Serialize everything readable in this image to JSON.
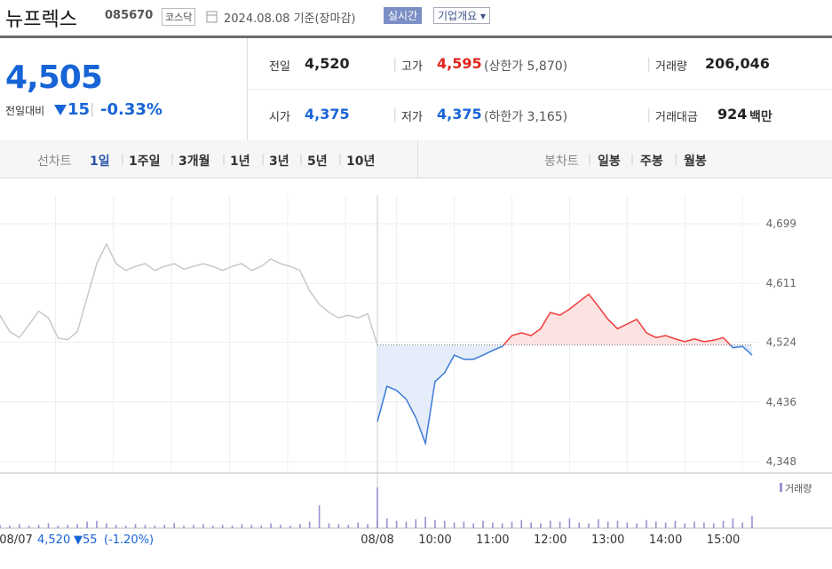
{
  "header": {
    "title": "뉴프렉스",
    "code": "085670",
    "market": "코스닥",
    "date": "2024.08.08 기준(장마감)",
    "realtime": "실시간",
    "overview": "기업개요"
  },
  "quote": {
    "price": "4,505",
    "change_label": "전일대비",
    "change": "15",
    "rate": "-0.33%",
    "rows": [
      [
        {
          "label": "전일",
          "value": "4,520"
        },
        {
          "label": "고가",
          "value": "4,595",
          "note": "(상한가 5,870)"
        },
        {
          "label": "거래량",
          "value": "206,046"
        }
      ],
      [
        {
          "label": "시가",
          "value": "4,375"
        },
        {
          "label": "저가",
          "value": "4,375",
          "note": "(하한가 3,165)"
        },
        {
          "label": "거래대금",
          "value": "924",
          "unit": "백만"
        }
      ]
    ]
  },
  "tabs": {
    "line_label": "선차트",
    "line": [
      "1일",
      "1주일",
      "3개월",
      "1년",
      "3년",
      "5년",
      "10년"
    ],
    "candle_label": "봉차트",
    "candle": [
      "일봉",
      "주봉",
      "월봉"
    ]
  },
  "footer": {
    "close": "4,520",
    "change": "▼55",
    "rate": "(-1.20%)"
  },
  "chart_data": {
    "type": "line",
    "categories": [
      "08/07",
      null,
      null,
      null,
      null,
      null,
      null,
      null,
      null,
      null,
      null,
      null,
      null,
      null,
      null,
      null,
      null,
      null,
      null,
      null,
      null,
      null,
      null,
      null,
      null,
      null,
      null,
      null,
      null,
      null,
      null,
      null,
      null,
      null,
      null,
      null,
      null,
      null,
      null,
      null,
      "08/08",
      null,
      null,
      null,
      null,
      null,
      "10:00",
      null,
      null,
      null,
      null,
      null,
      "11:00",
      null,
      null,
      null,
      null,
      null,
      "12:00",
      null,
      null,
      null,
      null,
      null,
      "13:00",
      null,
      null,
      null,
      null,
      null,
      "14:00",
      null,
      null,
      null,
      null,
      null,
      "15:00",
      null,
      null,
      null
    ],
    "series": [
      {
        "color": "#c8c8c8",
        "values": [
          4564,
          4540,
          4531,
          4550,
          4570,
          4560,
          4530,
          4528,
          4540,
          4590,
          4640,
          4669,
          4640,
          4630,
          4636,
          4640,
          4630,
          4636,
          4640,
          4632,
          4636,
          4640,
          4636,
          4630,
          4636,
          4640,
          4630,
          4636,
          4647,
          4640,
          4636,
          4630,
          4600,
          4580,
          4568,
          4560,
          4564,
          4560,
          4566,
          4520,
          null,
          null,
          null,
          null,
          null,
          null,
          null,
          null,
          null,
          null,
          null,
          null,
          null,
          null,
          null,
          null,
          null,
          null,
          null,
          null,
          null,
          null,
          null,
          null,
          null,
          null,
          null,
          null,
          null,
          null,
          null,
          null,
          null,
          null,
          null,
          null,
          null,
          null,
          null,
          null
        ]
      },
      {
        "color": "#3d7bd6",
        "up_color": "#ef3b3b",
        "fill": "#e4edf9",
        "up_fill": "#fde2e2",
        "values": [
          null,
          null,
          null,
          null,
          null,
          null,
          null,
          null,
          null,
          null,
          null,
          null,
          null,
          null,
          null,
          null,
          null,
          null,
          null,
          null,
          null,
          null,
          null,
          null,
          null,
          null,
          null,
          null,
          null,
          null,
          null,
          null,
          null,
          null,
          null,
          null,
          null,
          null,
          null,
          null,
          4407,
          4459,
          4453,
          4440,
          4413,
          4375,
          4466,
          4479,
          4505,
          4499,
          4499,
          4505,
          4512,
          4518,
          4534,
          4538,
          4534,
          4544,
          4568,
          4564,
          4573,
          4584,
          4595,
          4577,
          4558,
          4544,
          4551,
          4558,
          4538,
          4531,
          4534,
          4529,
          4525,
          4529,
          4525,
          4527,
          4531,
          4516,
          4518,
          4505
        ]
      },
      {
        "name": "거래량",
        "color": "#9b8fcf",
        "axis": "y2",
        "values": [
          4,
          3,
          5,
          3,
          4,
          6,
          3,
          4,
          5,
          8,
          9,
          6,
          4,
          3,
          5,
          4,
          3,
          4,
          6,
          3,
          4,
          5,
          3,
          4,
          3,
          5,
          4,
          3,
          6,
          4,
          3,
          5,
          8,
          28,
          6,
          5,
          4,
          7,
          5,
          10,
          50,
          12,
          9,
          8,
          11,
          14,
          10,
          9,
          7,
          8,
          6,
          9,
          7,
          6,
          8,
          10,
          7,
          6,
          9,
          8,
          12,
          7,
          6,
          11,
          8,
          9,
          7,
          6,
          10,
          8,
          7,
          9,
          6,
          8,
          7,
          6,
          9,
          12,
          7,
          15
        ]
      }
    ],
    "baseline": 4520,
    "ylim": [
      4348,
      4699
    ],
    "yticks": [
      {
        "value": 4348,
        "label": "4,348"
      },
      {
        "value": 4436,
        "label": "4,436"
      },
      {
        "value": 4524,
        "label": "4,524"
      },
      {
        "value": 4611,
        "label": "4,611"
      },
      {
        "value": 4699,
        "label": "4,699"
      }
    ],
    "y2lim": [
      0,
      60
    ],
    "grid": true,
    "legend": "top-right"
  }
}
